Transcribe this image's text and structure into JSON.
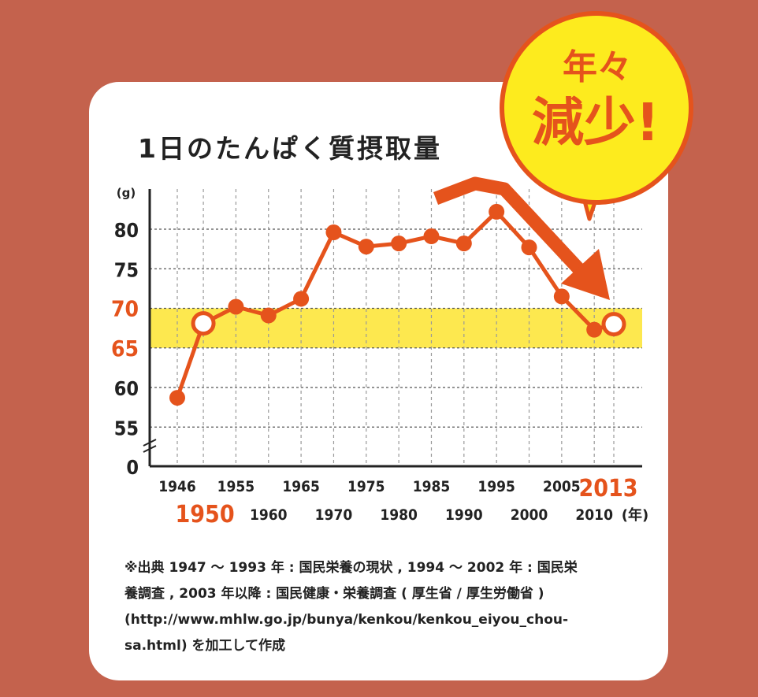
{
  "title": "1日のたんぱく質摂取量",
  "callout": {
    "line1": "年々",
    "line2": "減少!"
  },
  "source_lines": [
    "※出典 1947 〜 1993 年 : 国民栄養の現状 , 1994 〜 2002 年 : 国民栄",
    "養調査 , 2003 年以降 : 国民健康・栄養調査 ( 厚生省 / 厚生労働省 )",
    "(http://www.mhlw.go.jp/bunya/kenkou/kenkou_eiyou_chou-",
    "sa.html) を加工して作成"
  ],
  "colors": {
    "background": "#C4624D",
    "accent": "#E5531C",
    "band": "#FDE84F",
    "callout": "#FDEB1E"
  },
  "chart_data": {
    "type": "line",
    "title": "1日のたんぱく質摂取量",
    "ylabel": "(g)",
    "xlabel": "(年)",
    "y_ticks": [
      "0",
      "55",
      "60",
      "65",
      "70",
      "75",
      "80"
    ],
    "y_ticks_highlight": [
      "65",
      "70"
    ],
    "y_axis_break": "0 → 55",
    "x_ticks_upper": [
      "1946",
      "1955",
      "1965",
      "1975",
      "1985",
      "1995",
      "2005",
      "2013"
    ],
    "x_ticks_lower": [
      "1950",
      "1960",
      "1970",
      "1980",
      "1990",
      "2000",
      "2010"
    ],
    "x_ticks_highlight": [
      "1950",
      "2013"
    ],
    "highlight_band": [
      65,
      70
    ],
    "x": [
      1946,
      1950,
      1955,
      1960,
      1965,
      1970,
      1975,
      1980,
      1985,
      1990,
      1995,
      2000,
      2005,
      2010,
      2013
    ],
    "y": [
      58.7,
      68.1,
      70.2,
      69.1,
      71.2,
      79.6,
      77.8,
      78.2,
      79.1,
      78.2,
      82.2,
      77.7,
      71.5,
      67.3,
      68.0
    ],
    "hollow_points": [
      1950,
      2013
    ],
    "grid": true
  }
}
